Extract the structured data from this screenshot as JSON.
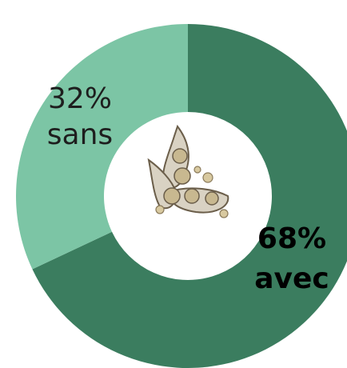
{
  "chart_data": {
    "type": "pie",
    "categories": [
      "avec",
      "sans"
    ],
    "values": [
      68,
      32
    ],
    "value_labels": [
      "68%",
      "32%"
    ],
    "colors": [
      "#3b7d5f",
      "#7cc5a5"
    ],
    "label_colors": [
      "#000000",
      "#1e1e1e"
    ],
    "label_weights": [
      "bold",
      "normal"
    ]
  }
}
